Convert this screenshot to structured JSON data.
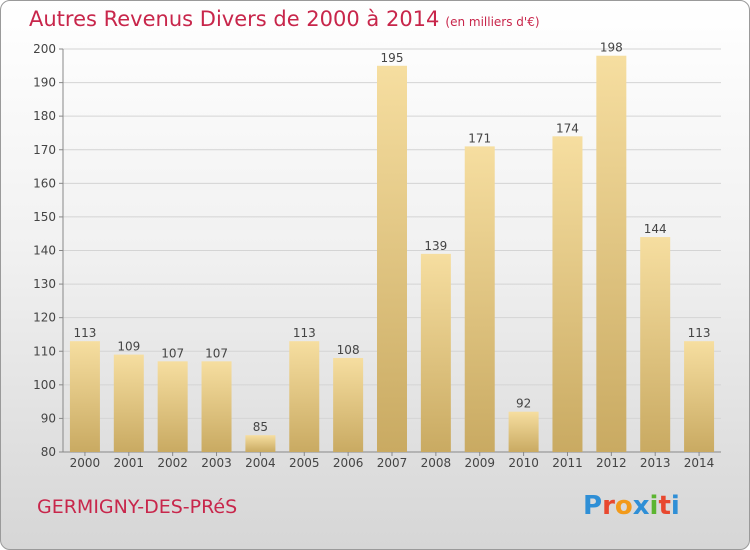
{
  "header": {
    "title": "Autres Revenus Divers de 2000 à 2014",
    "unit": "(en milliers d'€)"
  },
  "footer": {
    "town": "GERMIGNY-DES-PRéS",
    "logo_letters": [
      "P",
      "r",
      "o",
      "x",
      "i",
      "t",
      "i"
    ],
    "logo_colors": [
      "#2f8fd6",
      "#e8482f",
      "#f29a1a",
      "#2f8fd6",
      "#5cb531",
      "#e8482f",
      "#2f8fd6"
    ]
  },
  "colors": {
    "accent": "#c8264b",
    "bar_light": "#f6dea0",
    "bar_dark": "#c9aa62"
  },
  "chart_data": {
    "type": "bar",
    "categories": [
      "2000",
      "2001",
      "2002",
      "2003",
      "2004",
      "2005",
      "2006",
      "2007",
      "2008",
      "2009",
      "2010",
      "2011",
      "2012",
      "2013",
      "2014"
    ],
    "values": [
      113,
      109,
      107,
      107,
      85,
      113,
      108,
      195,
      139,
      171,
      92,
      174,
      198,
      144,
      113
    ],
    "yticks": [
      80,
      90,
      100,
      110,
      120,
      130,
      140,
      150,
      160,
      170,
      180,
      190,
      200
    ],
    "ylim": [
      80,
      200
    ],
    "grid": true,
    "title": "Autres Revenus Divers de 2000 à 2014"
  }
}
